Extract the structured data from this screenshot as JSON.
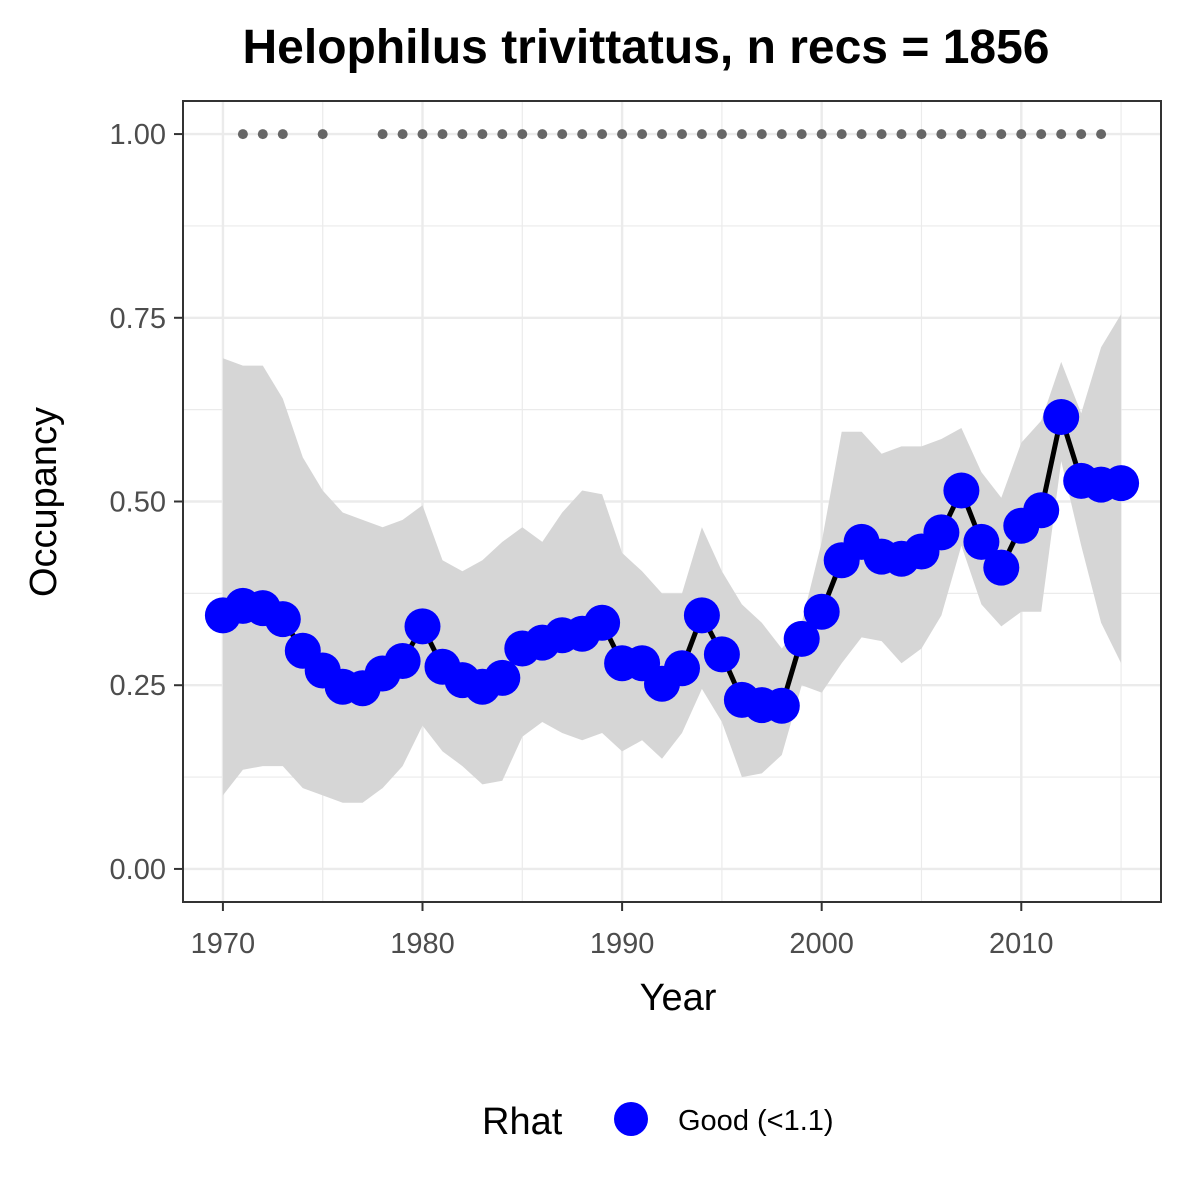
{
  "chart_data": {
    "type": "line",
    "title": "Helophilus trivittatus, n recs = 1856",
    "xlabel": "Year",
    "ylabel": "Occupancy",
    "xlim": [
      1968,
      2017
    ],
    "ylim": [
      -0.045,
      1.045
    ],
    "x_ticks": [
      1970,
      1980,
      1990,
      2000,
      2010
    ],
    "x_tick_labels": [
      "1970",
      "1980",
      "1990",
      "2000",
      "2010"
    ],
    "y_ticks": [
      0,
      0.25,
      0.5,
      0.75,
      1.0
    ],
    "y_tick_labels": [
      "0.00",
      "0.25",
      "0.50",
      "0.75",
      "1.00"
    ],
    "grid": true,
    "legend": {
      "position": "bottom",
      "title": "Rhat",
      "entries": [
        {
          "label": "Good (<1.1)",
          "color": "#0000ff"
        }
      ]
    },
    "colors": {
      "points": "#0000ff",
      "line": "#000000",
      "ribbon": "#d6d6d6",
      "records": "#666666",
      "grid": "#ebebeb",
      "panel_border": "#333333"
    },
    "series": [
      {
        "name": "Occupancy",
        "x": [
          1970,
          1971,
          1972,
          1973,
          1974,
          1975,
          1976,
          1977,
          1978,
          1979,
          1980,
          1981,
          1982,
          1983,
          1984,
          1985,
          1986,
          1987,
          1988,
          1989,
          1990,
          1991,
          1992,
          1993,
          1994,
          1995,
          1996,
          1997,
          1998,
          1999,
          2000,
          2001,
          2002,
          2003,
          2004,
          2005,
          2006,
          2007,
          2008,
          2009,
          2010,
          2011,
          2012,
          2013,
          2014,
          2015
        ],
        "y": [
          0.345,
          0.358,
          0.355,
          0.34,
          0.297,
          0.27,
          0.248,
          0.246,
          0.266,
          0.283,
          0.33,
          0.275,
          0.257,
          0.248,
          0.26,
          0.3,
          0.308,
          0.318,
          0.32,
          0.335,
          0.28,
          0.28,
          0.252,
          0.273,
          0.345,
          0.292,
          0.23,
          0.223,
          0.222,
          0.313,
          0.35,
          0.42,
          0.445,
          0.425,
          0.422,
          0.432,
          0.458,
          0.515,
          0.445,
          0.41,
          0.467,
          0.488,
          0.615,
          0.528,
          0.523,
          0.525
        ],
        "lower": [
          0.1,
          0.135,
          0.14,
          0.14,
          0.11,
          0.1,
          0.09,
          0.09,
          0.11,
          0.14,
          0.195,
          0.16,
          0.14,
          0.115,
          0.12,
          0.18,
          0.2,
          0.185,
          0.175,
          0.185,
          0.16,
          0.175,
          0.15,
          0.185,
          0.245,
          0.2,
          0.125,
          0.13,
          0.155,
          0.25,
          0.24,
          0.28,
          0.315,
          0.31,
          0.28,
          0.3,
          0.345,
          0.44,
          0.36,
          0.33,
          0.35,
          0.35,
          0.555,
          0.44,
          0.335,
          0.28
        ],
        "upper": [
          0.695,
          0.685,
          0.685,
          0.64,
          0.56,
          0.515,
          0.485,
          0.475,
          0.465,
          0.475,
          0.495,
          0.42,
          0.405,
          0.42,
          0.445,
          0.465,
          0.445,
          0.485,
          0.515,
          0.51,
          0.43,
          0.405,
          0.375,
          0.375,
          0.465,
          0.405,
          0.36,
          0.335,
          0.3,
          0.335,
          0.445,
          0.595,
          0.595,
          0.565,
          0.575,
          0.575,
          0.585,
          0.6,
          0.54,
          0.505,
          0.58,
          0.61,
          0.69,
          0.62,
          0.71,
          0.755
        ]
      },
      {
        "name": "Records",
        "x": [
          1971,
          1972,
          1973,
          1975,
          1978,
          1979,
          1980,
          1981,
          1982,
          1983,
          1984,
          1985,
          1986,
          1987,
          1988,
          1989,
          1990,
          1991,
          1992,
          1993,
          1994,
          1995,
          1996,
          1997,
          1998,
          1999,
          2000,
          2001,
          2002,
          2003,
          2004,
          2005,
          2006,
          2007,
          2008,
          2009,
          2010,
          2011,
          2012,
          2013,
          2014
        ],
        "y": [
          1,
          1,
          1,
          1,
          1,
          1,
          1,
          1,
          1,
          1,
          1,
          1,
          1,
          1,
          1,
          1,
          1,
          1,
          1,
          1,
          1,
          1,
          1,
          1,
          1,
          1,
          1,
          1,
          1,
          1,
          1,
          1,
          1,
          1,
          1,
          1,
          1,
          1,
          1,
          1,
          1
        ]
      }
    ]
  }
}
